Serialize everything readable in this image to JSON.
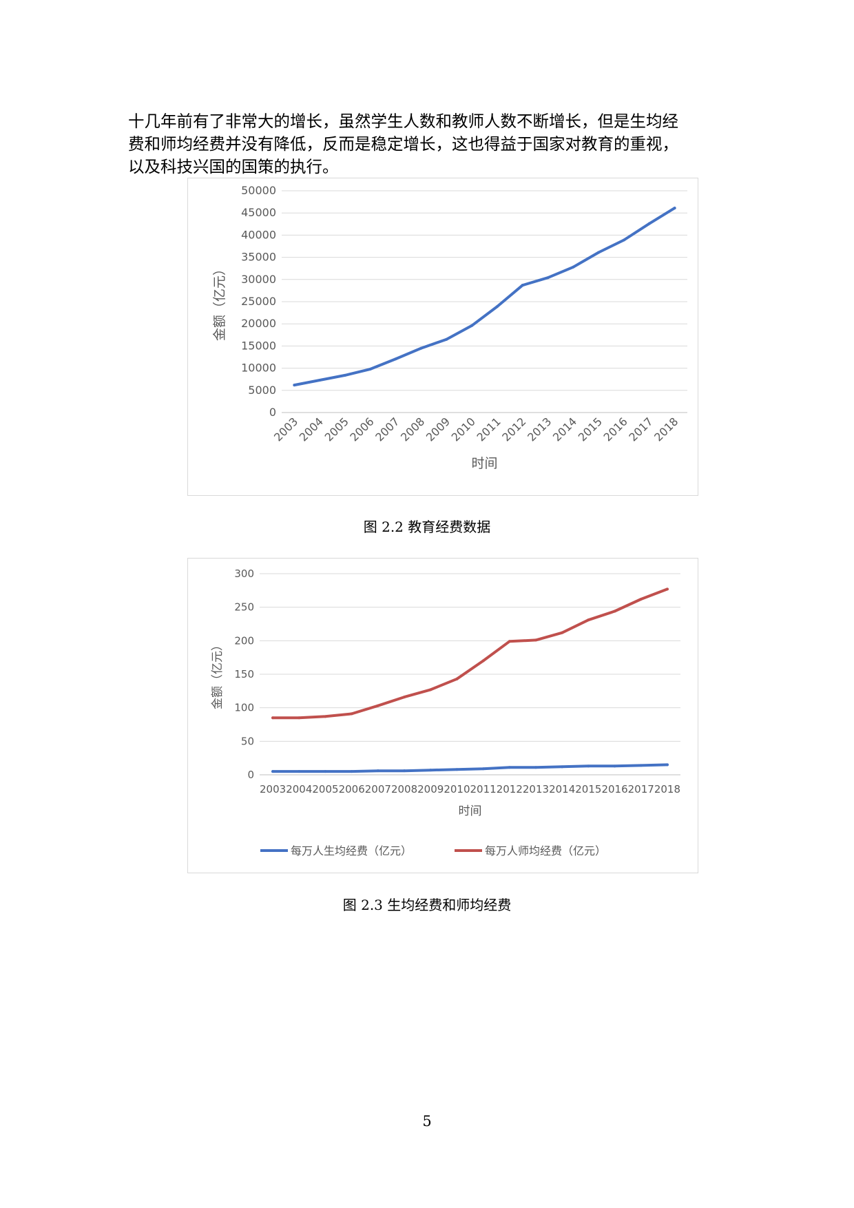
{
  "body_text": {
    "lines": [
      "十几年前有了非常大的增长，虽然学生人数和教师人数不断增长，但是生均经",
      "费和师均经费并没有降低，反而是稳定增长，这也得益于国家对教育的重视，",
      "以及科技兴国的国策的执行。"
    ]
  },
  "figures": [
    {
      "caption": "图 2.2  教育经费数据"
    },
    {
      "caption": "图 2.3  生均经费和师均经费"
    }
  ],
  "page_number": "5",
  "chart_data": [
    {
      "type": "line",
      "title": "",
      "xlabel": "时间",
      "ylabel": "金额（亿元）",
      "ylim": [
        0,
        50000
      ],
      "yticks": [
        0,
        5000,
        10000,
        15000,
        20000,
        25000,
        30000,
        35000,
        40000,
        45000,
        50000
      ],
      "grid": true,
      "legend": "none",
      "categories": [
        "2003",
        "2004",
        "2005",
        "2006",
        "2007",
        "2008",
        "2009",
        "2010",
        "2011",
        "2012",
        "2013",
        "2014",
        "2015",
        "2016",
        "2017",
        "2018"
      ],
      "series": [
        {
          "name": "",
          "color": "#4472c4",
          "values": [
            6200,
            7300,
            8400,
            9800,
            12100,
            14500,
            16500,
            19600,
            23900,
            28700,
            30400,
            32800,
            36100,
            38900,
            42600,
            46100
          ]
        }
      ]
    },
    {
      "type": "line",
      "title": "",
      "xlabel": "时间",
      "ylabel": "金额（亿元）",
      "ylim": [
        0,
        300
      ],
      "yticks": [
        0,
        50,
        100,
        150,
        200,
        250,
        300
      ],
      "grid": true,
      "legend": "bottom",
      "categories": [
        "2003",
        "2004",
        "2005",
        "2006",
        "2007",
        "2008",
        "2009",
        "2010",
        "2011",
        "2012",
        "2013",
        "2014",
        "2015",
        "2016",
        "2017",
        "2018"
      ],
      "series": [
        {
          "name": "每万人生均经费（亿元）",
          "color": "#4472c4",
          "values": [
            5,
            5,
            5,
            5,
            6,
            6,
            7,
            8,
            9,
            11,
            11,
            12,
            13,
            13,
            14,
            15
          ]
        },
        {
          "name": "每万人师均经费（亿元）",
          "color": "#c0504d",
          "values": [
            85,
            85,
            87,
            91,
            103,
            116,
            127,
            143,
            170,
            199,
            201,
            212,
            231,
            244,
            262,
            277
          ]
        }
      ]
    }
  ]
}
